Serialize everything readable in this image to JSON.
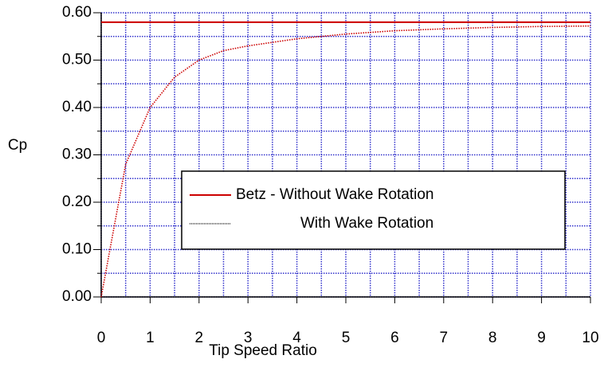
{
  "chart_data": {
    "type": "line",
    "x_label": "Tip Speed Ratio",
    "y_label": "Cp",
    "xlim": [
      0,
      10
    ],
    "xticks": [
      0,
      1,
      2,
      3,
      4,
      5,
      6,
      7,
      8,
      9,
      10
    ],
    "ylim": [
      0,
      0.6
    ],
    "yticks": [
      {
        "value": 0,
        "label": "0.00"
      },
      {
        "value": 0.1,
        "label": "0.10"
      },
      {
        "value": 0.2,
        "label": "0.20"
      },
      {
        "value": 0.3,
        "label": "0.30"
      },
      {
        "value": 0.4,
        "label": "0.40"
      },
      {
        "value": 0.5,
        "label": "0.50"
      },
      {
        "value": 0.6,
        "label": "0.60"
      }
    ],
    "grid": true,
    "grid_color": "#3333cc",
    "minor_grid": true,
    "series": [
      {
        "name": "Betz - Without Wake Rotation",
        "color": "#cc0000",
        "style": "solid",
        "x": [
          0,
          10
        ],
        "values": [
          0.58,
          0.58
        ]
      },
      {
        "name": "With Wake Rotation",
        "color": "#cc0000",
        "style": "dotted",
        "x": [
          0,
          0.5,
          1,
          1.5,
          2,
          2.5,
          3,
          4,
          5,
          6,
          7,
          8,
          9,
          10
        ],
        "values": [
          0,
          0.28,
          0.4,
          0.464,
          0.5,
          0.52,
          0.53,
          0.545,
          0.555,
          0.562,
          0.566,
          0.569,
          0.571,
          0.572
        ]
      }
    ]
  }
}
